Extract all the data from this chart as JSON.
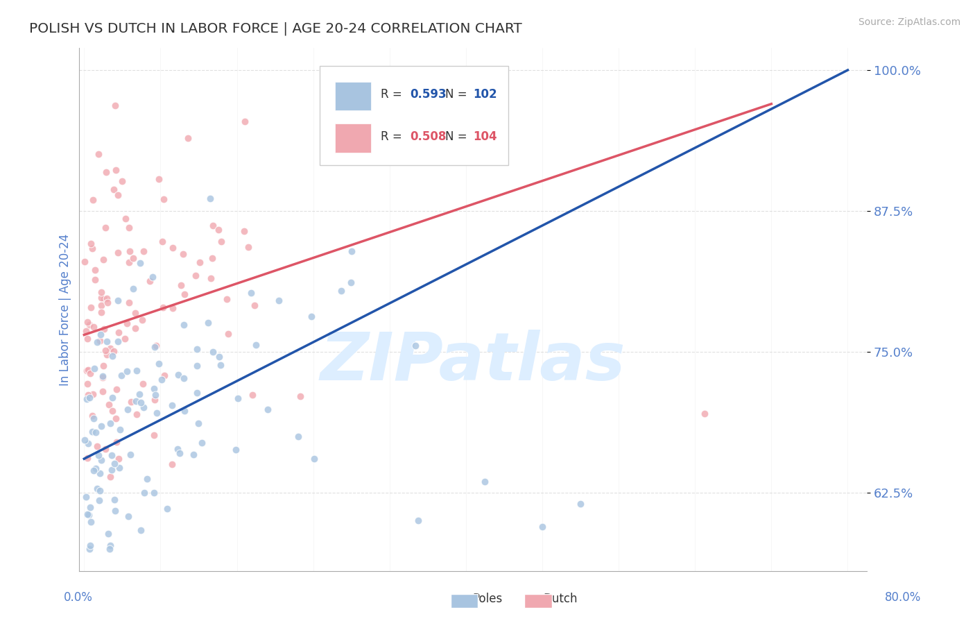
{
  "title": "POLISH VS DUTCH IN LABOR FORCE | AGE 20-24 CORRELATION CHART",
  "source": "Source: ZipAtlas.com",
  "ylabel": "In Labor Force | Age 20-24",
  "ylim_low": 0.555,
  "ylim_high": 1.02,
  "xlim_low": -0.005,
  "xlim_high": 0.82,
  "poles_R": 0.593,
  "poles_N": 102,
  "dutch_R": 0.508,
  "dutch_N": 104,
  "poles_color": "#A8C4E0",
  "dutch_color": "#F0A8B0",
  "poles_line_color": "#2255AA",
  "dutch_line_color": "#DD5566",
  "title_color": "#333333",
  "tick_color": "#5580CC",
  "watermark_color": "#DDEEFF",
  "background_color": "#FFFFFF",
  "grid_color": "#DDDDDD",
  "ytick_vals": [
    0.625,
    0.75,
    0.875,
    1.0
  ],
  "ytick_labels": [
    "62.5%",
    "75.0%",
    "87.5%",
    "100.0%"
  ]
}
